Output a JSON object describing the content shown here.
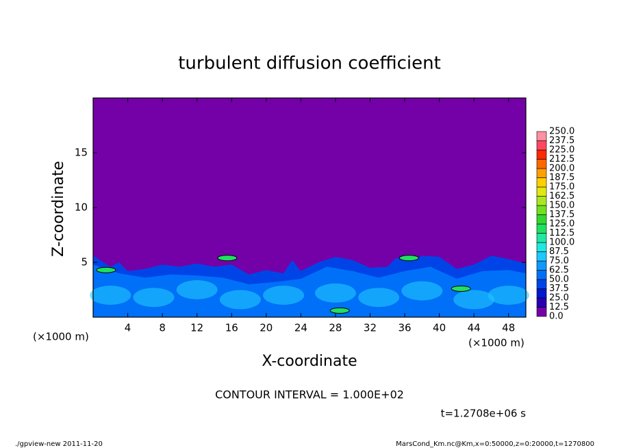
{
  "chart_data": {
    "type": "contour",
    "title": "turbulent diffusion coefficient",
    "xlabel": "X-coordinate",
    "ylabel": "Z-coordinate",
    "xunit": "(×1000 m)",
    "yunit": "(×1000 m)",
    "xlim": [
      0,
      50
    ],
    "ylim": [
      0,
      20
    ],
    "xticks": [
      4,
      8,
      12,
      16,
      20,
      24,
      28,
      32,
      36,
      40,
      44,
      48
    ],
    "yticks": [
      5,
      10,
      15
    ],
    "levels": [
      {
        "value": 0,
        "label": "0.0"
      },
      {
        "value": 12.5,
        "label": "12.5"
      },
      {
        "value": 25,
        "label": "25.0"
      },
      {
        "value": 37.5,
        "label": "37.5"
      },
      {
        "value": 50,
        "label": "50.0"
      },
      {
        "value": 62.5,
        "label": "62.5"
      },
      {
        "value": 75,
        "label": "75.0"
      },
      {
        "value": 87.5,
        "label": "87.5"
      },
      {
        "value": 100,
        "label": "100.0"
      },
      {
        "value": 112.5,
        "label": "112.5"
      },
      {
        "value": 125,
        "label": "125.0"
      },
      {
        "value": 137.5,
        "label": "137.5"
      },
      {
        "value": 150,
        "label": "150.0"
      },
      {
        "value": 162.5,
        "label": "162.5"
      },
      {
        "value": 175,
        "label": "175.0"
      },
      {
        "value": 187.5,
        "label": "187.5"
      },
      {
        "value": 200,
        "label": "200.0"
      },
      {
        "value": 212.5,
        "label": "212.5"
      },
      {
        "value": 225,
        "label": "225.0"
      },
      {
        "value": 237.5,
        "label": "237.5"
      },
      {
        "value": 250,
        "label": "250.0"
      }
    ],
    "colors": [
      "#7400a8",
      "#2800b4",
      "#0018d0",
      "#0044e8",
      "#0070f8",
      "#1098ff",
      "#20c8ff",
      "#20e8e0",
      "#20e8a0",
      "#20e060",
      "#30d830",
      "#70e020",
      "#a8e820",
      "#e0e810",
      "#ffd000",
      "#ffa000",
      "#ff6800",
      "#ff2800",
      "#ff4860",
      "#ff90a0"
    ],
    "annotation": "CONTOUR INTERVAL = 1.000E+02",
    "time_label": "t=1.2708e+06 s",
    "footer_left": "./gpview-new  2011-11-20",
    "footer_right": "MarsCond_Km.nc@Km,x=0:50000,z=0:20000,t=1270800"
  }
}
